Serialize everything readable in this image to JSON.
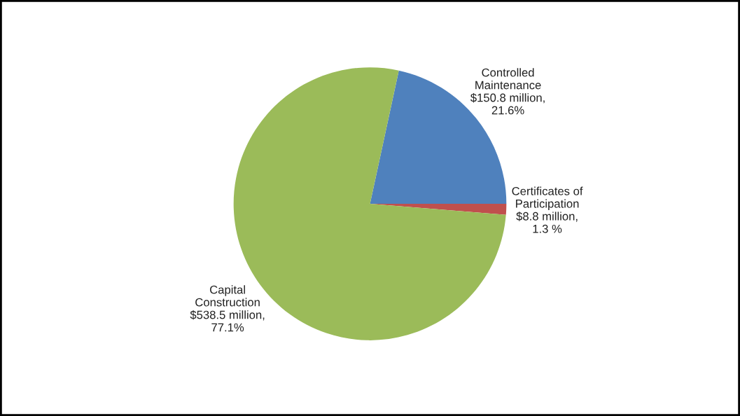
{
  "chart_data": {
    "type": "pie",
    "categories": [
      "Controlled\nMaintenance",
      "Certificates of\nParticipation",
      "Capital\nConstruction"
    ],
    "values": [
      21.6,
      1.3,
      77.1
    ],
    "value_labels": [
      "$150.8 million,\n21.6%",
      "$8.8 million,\n1.3 %",
      "$538.5 million,\n77.1%"
    ],
    "colors": [
      "#4f81bd",
      "#c0504d",
      "#9bbb59"
    ],
    "legend": false
  }
}
